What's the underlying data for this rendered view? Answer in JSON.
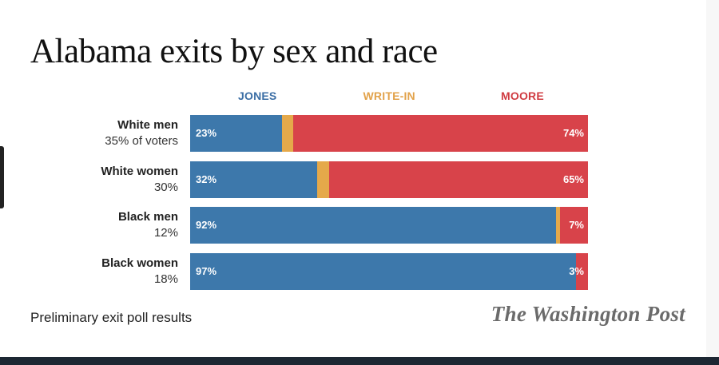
{
  "title": "Alabama exits by sex and race",
  "note": "Preliminary exit poll results",
  "source_logo": "The Washington Post",
  "colors": {
    "jones": "#3d78ab",
    "writein": "#e5a94a",
    "moore": "#d8434a",
    "legend_jones": "#3b6ea5",
    "legend_writein": "#e2a24a",
    "legend_moore": "#d03c42"
  },
  "chart_data": {
    "type": "bar",
    "stacked": true,
    "orientation": "horizontal",
    "title": "Alabama exits by sex and race",
    "legend": [
      "JONES",
      "WRITE-IN",
      "MOORE"
    ],
    "legend_placement": "top",
    "categories": [
      {
        "name": "White men",
        "share": "35% of voters"
      },
      {
        "name": "White women",
        "share": "30%"
      },
      {
        "name": "Black men",
        "share": "12%"
      },
      {
        "name": "Black women",
        "share": "18%"
      }
    ],
    "series": [
      {
        "name": "JONES",
        "values": [
          23,
          32,
          92,
          97
        ],
        "labels": [
          "23%",
          "32%",
          "92%",
          "97%"
        ]
      },
      {
        "name": "WRITE-IN",
        "values": [
          3,
          3,
          1,
          0
        ],
        "labels": [
          "",
          "",
          "",
          ""
        ]
      },
      {
        "name": "MOORE",
        "values": [
          74,
          65,
          7,
          3
        ],
        "labels": [
          "74%",
          "65%",
          "7%",
          "3%"
        ]
      }
    ],
    "xlim": [
      0,
      100
    ]
  }
}
